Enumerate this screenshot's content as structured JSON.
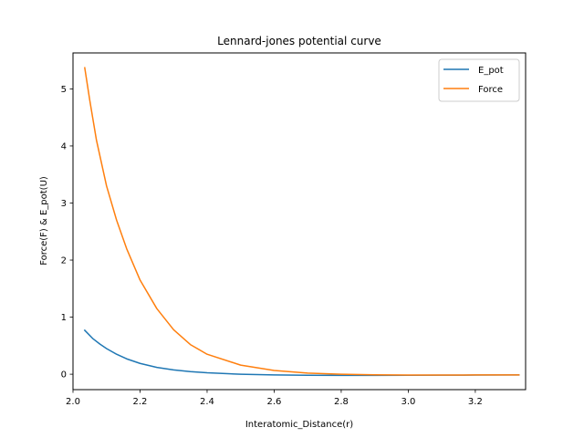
{
  "chart_data": {
    "type": "line",
    "title": "Lennard-jones potential curve",
    "xlabel": "Interatomic_Distance(r)",
    "ylabel": "Force(F) & E_pot(U)",
    "xlim": [
      2.0,
      3.35
    ],
    "ylim": [
      -0.27,
      5.63
    ],
    "xticks": [
      2.0,
      2.2,
      2.4,
      2.6,
      2.8,
      3.0,
      3.2
    ],
    "xtick_labels": [
      "2.0",
      "2.2",
      "2.4",
      "2.6",
      "2.8",
      "3.0",
      "3.2"
    ],
    "yticks": [
      0,
      1,
      2,
      3,
      4,
      5
    ],
    "ytick_labels": [
      "0",
      "1",
      "2",
      "3",
      "4",
      "5"
    ],
    "legend_position": "upper-right",
    "grid": false,
    "series": [
      {
        "name": "E_pot",
        "color": "#1f77b4",
        "x": [
          2.035,
          2.06,
          2.08,
          2.1,
          2.13,
          2.16,
          2.2,
          2.25,
          2.3,
          2.35,
          2.4,
          2.5,
          2.6,
          2.7,
          2.8,
          2.9,
          3.0,
          3.1,
          3.2,
          3.33
        ],
        "y": [
          0.77,
          0.62,
          0.53,
          0.45,
          0.35,
          0.27,
          0.19,
          0.12,
          0.075,
          0.045,
          0.025,
          0.0,
          -0.012,
          -0.018,
          -0.02,
          -0.02,
          -0.019,
          -0.017,
          -0.015,
          -0.013
        ]
      },
      {
        "name": "Force",
        "color": "#ff7f0e",
        "x": [
          2.035,
          2.05,
          2.07,
          2.1,
          2.13,
          2.16,
          2.2,
          2.25,
          2.3,
          2.35,
          2.4,
          2.5,
          2.6,
          2.7,
          2.8,
          2.9,
          3.0,
          3.1,
          3.2,
          3.33
        ],
        "y": [
          5.37,
          4.8,
          4.1,
          3.3,
          2.7,
          2.2,
          1.65,
          1.15,
          0.78,
          0.52,
          0.35,
          0.16,
          0.065,
          0.02,
          0.0,
          -0.01,
          -0.015,
          -0.015,
          -0.013,
          -0.012
        ]
      }
    ]
  }
}
